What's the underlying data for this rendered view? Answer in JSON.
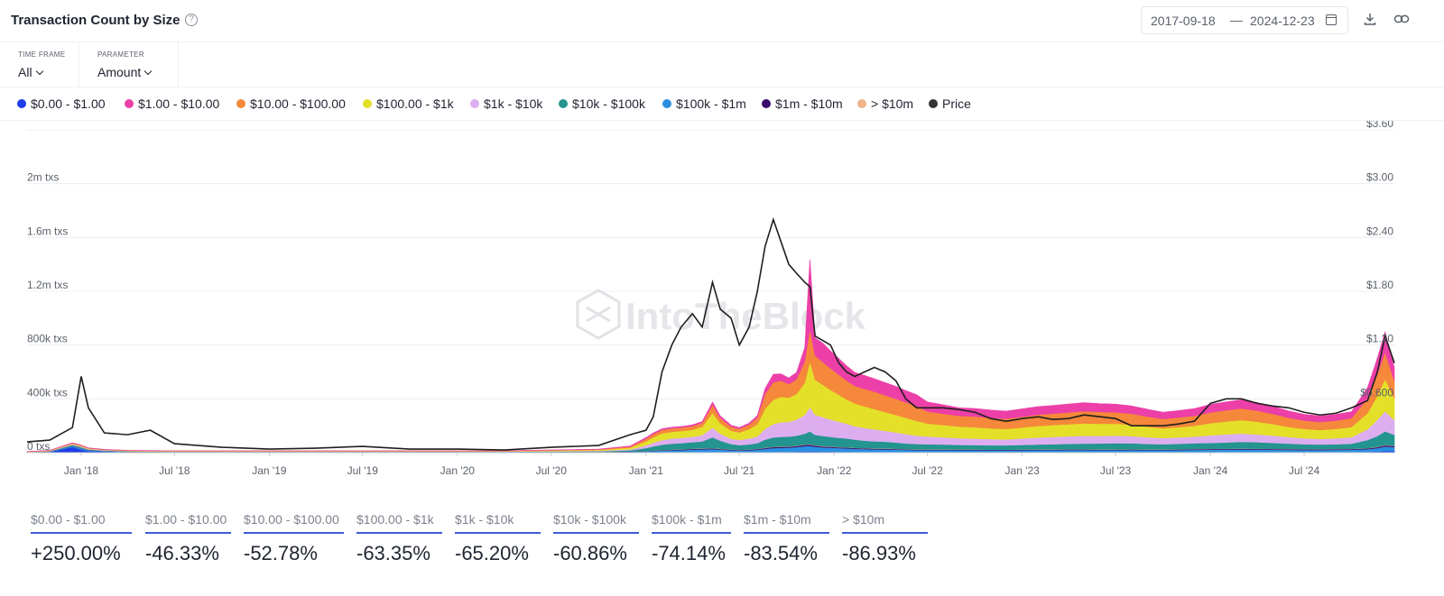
{
  "header": {
    "title": "Transaction Count by Size",
    "date_start": "2017-09-18",
    "date_sep": "—",
    "date_end": "2024-12-23"
  },
  "controls": {
    "timeframe_label": "TIME FRAME",
    "timeframe_value": "All",
    "parameter_label": "PARAMETER",
    "parameter_value": "Amount"
  },
  "legend": [
    {
      "label": "$0.00 - $1.00",
      "color": "#1f3de8"
    },
    {
      "label": "$1.00 - $10.00",
      "color": "#ec3fa8"
    },
    {
      "label": "$10.00 - $100.00",
      "color": "#f5883a"
    },
    {
      "label": "$100.00 - $1k",
      "color": "#e4e02a"
    },
    {
      "label": "$1k - $10k",
      "color": "#dcaef0"
    },
    {
      "label": "$10k - $100k",
      "color": "#23948f"
    },
    {
      "label": "$100k - $1m",
      "color": "#2a8fe0"
    },
    {
      "label": "$1m - $10m",
      "color": "#3a0a6b"
    },
    {
      "label": "> $10m",
      "color": "#f0b48a"
    },
    {
      "label": "Price",
      "color": "#333333"
    }
  ],
  "watermark": "IntoTheBlock",
  "stats": [
    {
      "label": "$0.00 - $1.00",
      "value": "+250.00%"
    },
    {
      "label": "$1.00 - $10.00",
      "value": "-46.33%"
    },
    {
      "label": "$10.00 - $100.00",
      "value": "-52.78%"
    },
    {
      "label": "$100.00 - $1k",
      "value": "-63.35%"
    },
    {
      "label": "$1k - $10k",
      "value": "-65.20%"
    },
    {
      "label": "$10k - $100k",
      "value": "-60.86%"
    },
    {
      "label": "$100k - $1m",
      "value": "-74.14%"
    },
    {
      "label": "$1m - $10m",
      "value": "-83.54%"
    },
    {
      "label": "> $10m",
      "value": "-86.93%"
    }
  ],
  "chart_data": {
    "type": "area",
    "stacked": true,
    "x_dates": [
      "2017-09-18",
      "2017-11-01",
      "2017-12-15",
      "2018-01-01",
      "2018-01-15",
      "2018-02-15",
      "2018-04-01",
      "2018-05-15",
      "2018-07-01",
      "2018-10-01",
      "2019-01-01",
      "2019-04-01",
      "2019-07-01",
      "2019-10-01",
      "2020-01-01",
      "2020-04-01",
      "2020-07-01",
      "2020-10-01",
      "2020-12-01",
      "2021-01-01",
      "2021-01-15",
      "2021-02-01",
      "2021-02-20",
      "2021-03-10",
      "2021-04-01",
      "2021-04-20",
      "2021-05-10",
      "2021-05-25",
      "2021-06-15",
      "2021-07-01",
      "2021-07-20",
      "2021-08-05",
      "2021-08-20",
      "2021-09-05",
      "2021-09-20",
      "2021-10-05",
      "2021-10-20",
      "2021-11-05",
      "2021-11-15",
      "2021-11-25",
      "2021-12-10",
      "2021-12-25",
      "2022-01-10",
      "2022-01-25",
      "2022-02-10",
      "2022-03-01",
      "2022-03-20",
      "2022-04-10",
      "2022-05-01",
      "2022-05-20",
      "2022-06-10",
      "2022-07-01",
      "2022-08-01",
      "2022-09-01",
      "2022-10-01",
      "2022-11-01",
      "2022-12-01",
      "2023-01-01",
      "2023-02-01",
      "2023-03-01",
      "2023-04-01",
      "2023-05-01",
      "2023-06-01",
      "2023-07-01",
      "2023-08-01",
      "2023-09-01",
      "2023-10-01",
      "2023-11-01",
      "2023-12-01",
      "2024-01-01",
      "2024-02-01",
      "2024-03-01",
      "2024-04-01",
      "2024-05-01",
      "2024-06-01",
      "2024-07-01",
      "2024-08-01",
      "2024-09-01",
      "2024-10-01",
      "2024-11-01",
      "2024-11-20",
      "2024-12-05",
      "2024-12-23"
    ],
    "y_axis_left": {
      "ticks": [
        "0 txs",
        "400k txs",
        "800k txs",
        "1.2m txs",
        "1.6m txs",
        "2m txs"
      ],
      "tick_values": [
        0,
        400000,
        800000,
        1200000,
        1600000,
        2000000
      ],
      "ylim": [
        0,
        2400000
      ]
    },
    "y_axis_right": {
      "ticks": [
        "$0.600",
        "$1.20",
        "$1.80",
        "$2.40",
        "$3.00",
        "$3.60"
      ],
      "tick_values": [
        0.6,
        1.2,
        1.8,
        2.4,
        3.0,
        3.6
      ],
      "ylim": [
        0,
        3.6
      ]
    },
    "x_ticks": [
      {
        "label": "Jan '18",
        "date": "2018-01-01"
      },
      {
        "label": "Jul '18",
        "date": "2018-07-01"
      },
      {
        "label": "Jan '19",
        "date": "2019-01-01"
      },
      {
        "label": "Jul '19",
        "date": "2019-07-01"
      },
      {
        "label": "Jan '20",
        "date": "2020-01-01"
      },
      {
        "label": "Jul '20",
        "date": "2020-07-01"
      },
      {
        "label": "Jan '21",
        "date": "2021-01-01"
      },
      {
        "label": "Jul '21",
        "date": "2021-07-01"
      },
      {
        "label": "Jan '22",
        "date": "2022-01-01"
      },
      {
        "label": "Jul '22",
        "date": "2022-07-01"
      },
      {
        "label": "Jan '23",
        "date": "2023-01-01"
      },
      {
        "label": "Jul '23",
        "date": "2023-07-01"
      },
      {
        "label": "Jan '24",
        "date": "2024-01-01"
      },
      {
        "label": "Jul '24",
        "date": "2024-07-01"
      }
    ],
    "series": [
      {
        "name": "$0.00 - $1.00",
        "color": "#1f3de8",
        "values": [
          2000,
          5000,
          42000,
          22000,
          12000,
          8000,
          4000,
          3000,
          2000,
          2000,
          2000,
          2000,
          2000,
          2000,
          2000,
          2000,
          2000,
          2000,
          2000,
          3000,
          3000,
          3000,
          4000,
          4000,
          5000,
          5000,
          5000,
          5000,
          4000,
          4000,
          4000,
          4000,
          5000,
          6000,
          6000,
          6000,
          7000,
          9000,
          9000,
          8000,
          7000,
          7000,
          6000,
          6000,
          5000,
          5000,
          5000,
          5000,
          5000,
          5000,
          5000,
          5000,
          5000,
          5000,
          5000,
          5000,
          5000,
          5000,
          5000,
          5000,
          5000,
          5000,
          5000,
          5000,
          5000,
          5000,
          5000,
          5000,
          5000,
          5000,
          5000,
          5000,
          5000,
          5000,
          5000,
          5000,
          5000,
          5000,
          5000,
          6000,
          8000,
          12000,
          12000
        ]
      },
      {
        "name": "$100k - $1m",
        "color": "#2a8fe0",
        "values": [
          1000,
          3000,
          8000,
          10000,
          6000,
          4000,
          3000,
          2000,
          2000,
          2000,
          2000,
          2000,
          2000,
          2000,
          2000,
          2000,
          3000,
          3000,
          5000,
          8000,
          10000,
          12000,
          14000,
          15000,
          18000,
          20000,
          22000,
          18000,
          14000,
          12000,
          14000,
          18000,
          24000,
          28000,
          30000,
          32000,
          34000,
          40000,
          42000,
          36000,
          32000,
          30000,
          28000,
          26000,
          24000,
          22000,
          20000,
          20000,
          18000,
          16000,
          14000,
          14000,
          14000,
          13000,
          13000,
          12000,
          12000,
          13000,
          14000,
          14000,
          15000,
          15000,
          14000,
          14000,
          15000,
          14000,
          14000,
          15000,
          16000,
          17000,
          18000,
          19000,
          18000,
          17000,
          16000,
          15000,
          15000,
          16000,
          17000,
          20000,
          26000,
          34000,
          30000
        ]
      },
      {
        "name": "$1m - $10m",
        "color": "#3a0a6b",
        "values": [
          500,
          500,
          1500,
          2000,
          1500,
          1000,
          1000,
          1000,
          1000,
          1000,
          1000,
          1000,
          1000,
          1000,
          1000,
          1000,
          1000,
          1000,
          1500,
          2000,
          2500,
          3000,
          3500,
          4000,
          5000,
          5000,
          5000,
          4500,
          4000,
          3500,
          4000,
          5000,
          6000,
          7000,
          7000,
          7000,
          8000,
          9000,
          9000,
          8000,
          7000,
          7000,
          6000,
          6000,
          5500,
          5000,
          5000,
          5000,
          4500,
          4000,
          4000,
          4000,
          4000,
          4000,
          4000,
          4000,
          4000,
          4000,
          4000,
          4000,
          4000,
          4000,
          4000,
          4000,
          4000,
          4000,
          4000,
          4000,
          5000,
          5000,
          5000,
          5000,
          5000,
          5000,
          5000,
          5000,
          5000,
          5000,
          5000,
          6000,
          7000,
          9000,
          8000
        ]
      },
      {
        "name": "> $10m",
        "color": "#f0b48a",
        "values": [
          200,
          200,
          500,
          800,
          600,
          400,
          300,
          300,
          300,
          300,
          300,
          300,
          300,
          300,
          300,
          300,
          300,
          300,
          500,
          800,
          1000,
          1200,
          1400,
          1500,
          1800,
          2000,
          2000,
          1800,
          1600,
          1500,
          1600,
          1800,
          2000,
          2200,
          2400,
          2500,
          2600,
          2800,
          3000,
          2800,
          2600,
          2400,
          2200,
          2000,
          2000,
          1900,
          1800,
          1800,
          1700,
          1600,
          1500,
          1500,
          1500,
          1500,
          1500,
          1500,
          1500,
          1500,
          1500,
          1500,
          1500,
          1500,
          1500,
          1500,
          1500,
          1500,
          1500,
          1500,
          1600,
          1700,
          1800,
          1800,
          1800,
          1700,
          1600,
          1500,
          1500,
          1600,
          1700,
          2000,
          2500,
          3200,
          3000
        ]
      },
      {
        "name": "$10k - $100k",
        "color": "#23948f",
        "values": [
          1000,
          2000,
          6000,
          6000,
          4000,
          3000,
          2000,
          2000,
          2000,
          2000,
          2000,
          2000,
          2000,
          2000,
          2000,
          2000,
          3000,
          4000,
          8000,
          20000,
          30000,
          40000,
          44000,
          46000,
          48000,
          52000,
          80000,
          60000,
          40000,
          35000,
          38000,
          42000,
          60000,
          70000,
          72000,
          72000,
          74000,
          80000,
          95000,
          78000,
          76000,
          70000,
          68000,
          66000,
          60000,
          55000,
          52000,
          50000,
          46000,
          42000,
          40000,
          38000,
          36000,
          34000,
          33000,
          32000,
          32000,
          34000,
          36000,
          38000,
          40000,
          42000,
          44000,
          46000,
          44000,
          40000,
          38000,
          40000,
          42000,
          44000,
          46000,
          50000,
          48000,
          44000,
          40000,
          36000,
          34000,
          35000,
          38000,
          60000,
          80000,
          100000,
          80000
        ]
      },
      {
        "name": "$1k - $10k",
        "color": "#dcaef0",
        "values": [
          1000,
          2000,
          5000,
          5000,
          4000,
          3000,
          2000,
          2000,
          2000,
          2000,
          2000,
          2000,
          2000,
          2000,
          2000,
          2000,
          3000,
          4000,
          8000,
          20000,
          28000,
          34000,
          38000,
          40000,
          40000,
          46000,
          72000,
          52000,
          40000,
          38000,
          44000,
          50000,
          80000,
          100000,
          108000,
          110000,
          120000,
          140000,
          180000,
          150000,
          140000,
          130000,
          120000,
          110000,
          100000,
          95000,
          90000,
          80000,
          75000,
          70000,
          62000,
          58000,
          54000,
          50000,
          48000,
          46000,
          44000,
          48000,
          52000,
          54000,
          56000,
          58000,
          56000,
          56000,
          54000,
          50000,
          46000,
          48000,
          50000,
          56000,
          60000,
          62000,
          58000,
          54000,
          48000,
          44000,
          42000,
          44000,
          48000,
          80000,
          120000,
          150000,
          110000
        ]
      },
      {
        "name": "$100.00 - $1k",
        "color": "#e4e02a",
        "values": [
          1000,
          2000,
          4000,
          4000,
          3000,
          2000,
          2000,
          2000,
          2000,
          2000,
          2000,
          2000,
          2000,
          2000,
          2000,
          2000,
          4000,
          6000,
          12000,
          30000,
          40000,
          50000,
          50000,
          50000,
          52000,
          62000,
          110000,
          78000,
          60000,
          56000,
          70000,
          90000,
          150000,
          180000,
          190000,
          180000,
          190000,
          240000,
          340000,
          260000,
          240000,
          220000,
          200000,
          180000,
          170000,
          160000,
          150000,
          140000,
          130000,
          120000,
          110000,
          96000,
          90000,
          86000,
          84000,
          80000,
          78000,
          82000,
          86000,
          88000,
          90000,
          92000,
          90000,
          88000,
          84000,
          78000,
          72000,
          76000,
          80000,
          90000,
          96000,
          100000,
          94000,
          86000,
          76000,
          70000,
          66000,
          70000,
          76000,
          120000,
          180000,
          240000,
          160000
        ]
      },
      {
        "name": "$10.00 - $100.00",
        "color": "#f5883a",
        "values": [
          1000,
          2000,
          4000,
          4000,
          3000,
          2000,
          2000,
          2000,
          2000,
          2000,
          2000,
          2000,
          2000,
          2000,
          2000,
          2000,
          3000,
          4000,
          8000,
          20000,
          24000,
          26000,
          26000,
          26000,
          28000,
          30000,
          60000,
          40000,
          30000,
          28000,
          34000,
          50000,
          110000,
          130000,
          120000,
          100000,
          110000,
          160000,
          240000,
          180000,
          170000,
          160000,
          150000,
          140000,
          130000,
          130000,
          130000,
          125000,
          120000,
          115000,
          110000,
          90000,
          85000,
          80000,
          80000,
          78000,
          76000,
          80000,
          84000,
          86000,
          88000,
          90000,
          88000,
          86000,
          82000,
          76000,
          70000,
          72000,
          74000,
          80000,
          84000,
          86000,
          82000,
          76000,
          68000,
          62000,
          60000,
          62000,
          66000,
          110000,
          160000,
          200000,
          130000
        ]
      },
      {
        "name": "$1.00 - $10.00",
        "color": "#ec3fa8",
        "values": [
          500,
          1000,
          2000,
          2000,
          1500,
          1000,
          1000,
          1000,
          1000,
          1000,
          1000,
          1000,
          1000,
          1000,
          1000,
          1000,
          1500,
          2000,
          4000,
          8000,
          8000,
          8000,
          8000,
          8000,
          9000,
          9000,
          20000,
          14000,
          10000,
          9000,
          10000,
          14000,
          40000,
          60000,
          50000,
          46000,
          50000,
          100000,
          520000,
          130000,
          140000,
          130000,
          120000,
          110000,
          100000,
          100000,
          96000,
          94000,
          92000,
          88000,
          84000,
          70000,
          66000,
          60000,
          60000,
          58000,
          56000,
          58000,
          60000,
          60000,
          62000,
          64000,
          62000,
          60000,
          58000,
          54000,
          50000,
          52000,
          54000,
          60000,
          62000,
          64000,
          60000,
          56000,
          50000,
          46000,
          44000,
          46000,
          48000,
          80000,
          120000,
          150000,
          100000
        ]
      }
    ],
    "price": {
      "name": "Price",
      "color": "#1f1f1f",
      "values": [
        0.12,
        0.14,
        0.28,
        0.85,
        0.5,
        0.22,
        0.2,
        0.25,
        0.1,
        0.06,
        0.04,
        0.05,
        0.07,
        0.04,
        0.04,
        0.03,
        0.06,
        0.08,
        0.2,
        0.25,
        0.4,
        0.9,
        1.2,
        1.4,
        1.55,
        1.4,
        1.9,
        1.6,
        1.5,
        1.2,
        1.4,
        1.8,
        2.3,
        2.6,
        2.35,
        2.1,
        2.0,
        1.9,
        1.85,
        1.3,
        1.25,
        1.2,
        1.0,
        0.9,
        0.85,
        0.9,
        0.95,
        0.9,
        0.8,
        0.6,
        0.5,
        0.5,
        0.5,
        0.48,
        0.45,
        0.38,
        0.35,
        0.38,
        0.4,
        0.37,
        0.38,
        0.42,
        0.4,
        0.38,
        0.3,
        0.3,
        0.3,
        0.32,
        0.35,
        0.55,
        0.6,
        0.6,
        0.55,
        0.52,
        0.5,
        0.45,
        0.42,
        0.44,
        0.5,
        0.58,
        0.9,
        1.3,
        1.0
      ]
    }
  }
}
